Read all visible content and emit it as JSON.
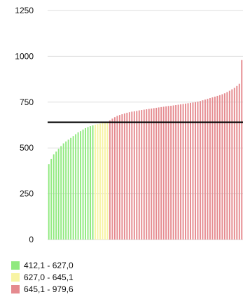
{
  "chart_data": {
    "type": "bar",
    "title": "",
    "xlabel": "",
    "ylabel": "",
    "ylim": [
      0,
      1250
    ],
    "yticks": [
      0,
      250,
      500,
      750,
      1000,
      1250
    ],
    "grid": true,
    "legend_placement": "bottom-left",
    "reference_line": 640,
    "legend": [
      {
        "label": "412,1 - 627,0",
        "color": "#90e97f"
      },
      {
        "label": "627,0 - 645,1",
        "color": "#f8f4a4"
      },
      {
        "label": "645,1 - 979,6",
        "color": "#e58a8f"
      }
    ],
    "values": [
      412,
      440,
      465,
      480,
      495,
      510,
      525,
      535,
      545,
      555,
      565,
      575,
      585,
      592,
      600,
      608,
      614,
      619,
      623,
      627,
      630,
      633,
      636,
      639,
      642,
      650,
      660,
      668,
      675,
      680,
      684,
      688,
      692,
      695,
      698,
      700,
      702,
      705,
      707,
      709,
      711,
      713,
      715,
      717,
      719,
      721,
      723,
      725,
      727,
      729,
      730,
      732,
      734,
      736,
      738,
      740,
      742,
      744,
      746,
      748,
      750,
      753,
      756,
      760,
      764,
      768,
      772,
      776,
      780,
      784,
      788,
      793,
      798,
      805,
      812,
      820,
      828,
      838,
      850,
      979.6
    ]
  }
}
